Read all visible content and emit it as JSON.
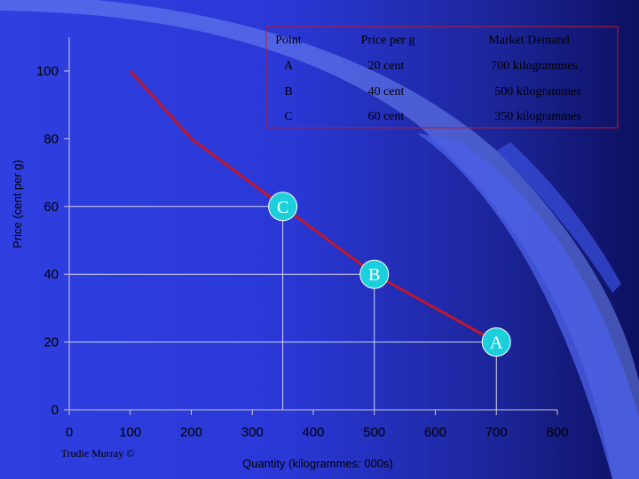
{
  "chart_data": {
    "type": "line",
    "title": "",
    "xlabel": "Quantity (kilogrammes: 000s)",
    "ylabel": "Price (cent per g)",
    "xlim": [
      0,
      800
    ],
    "ylim": [
      0,
      100
    ],
    "x_ticks": [
      0,
      100,
      200,
      300,
      400,
      500,
      600,
      700,
      800
    ],
    "y_ticks": [
      0,
      20,
      40,
      60,
      80,
      100
    ],
    "grid": false,
    "series": [
      {
        "color": "#c0182a",
        "x": [
          100,
          200,
          350,
          500,
          700
        ],
        "y": [
          100,
          80,
          60,
          40,
          20
        ]
      }
    ],
    "markers": [
      {
        "label": "C",
        "x": 350,
        "y": 60
      },
      {
        "label": "B",
        "x": 500,
        "y": 40
      },
      {
        "label": "A",
        "x": 700,
        "y": 20
      }
    ],
    "table": {
      "headers": [
        "Point",
        "Price per g",
        "Market Demand"
      ],
      "rows": [
        [
          "A",
          "20 cent",
          "700 kilogrammes"
        ],
        [
          "B",
          "40 cent",
          "500 kilogrammes"
        ],
        [
          "C",
          "60 cent",
          "350 kilogrammes"
        ]
      ]
    },
    "credit": "Trudie Murray ©"
  },
  "colors": {
    "curve": "#c0182a",
    "marker_fill": "#1bd0dc",
    "dropline": "#d8d8e8",
    "table_border": "#c0182a",
    "swoosh_light": "#6f86f0",
    "swoosh_dark": "#4a62e8"
  }
}
